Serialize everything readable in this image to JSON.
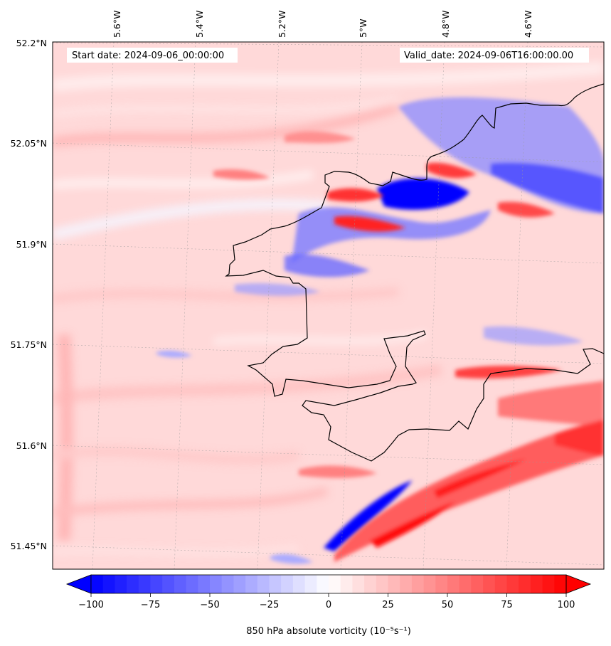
{
  "map": {
    "start_date_text": "Start date: 2024-09-06_00:00:00",
    "valid_date_text": "Valid_date: 2024-09-06T16:00:00.00",
    "lon_labels": [
      "5.6°W",
      "5.4°W",
      "5.2°W",
      "5°W",
      "4.8°W",
      "4.6°W"
    ],
    "lat_labels": [
      "52.2°N",
      "52.05°N",
      "51.9°N",
      "51.75°N",
      "51.6°N",
      "51.45°N"
    ],
    "field": "850 hPa absolute vorticity",
    "colormap": "bwr",
    "coastline_color": "#000000",
    "gridlines": "dotted",
    "features": [
      {
        "name": "strong-negative-core",
        "sign": "negative"
      },
      {
        "name": "negative-band-northeast",
        "sign": "negative"
      },
      {
        "name": "negative-streak-southwest",
        "sign": "negative"
      },
      {
        "name": "positive-band-south",
        "sign": "positive"
      },
      {
        "name": "positive-band-southeast",
        "sign": "positive"
      }
    ]
  },
  "colorbar": {
    "label": "850 hPa absolute vorticity (10⁻⁵s⁻¹)",
    "tick_labels": [
      "−100",
      "−75",
      "−50",
      "−25",
      "0",
      "25",
      "50",
      "75",
      "100"
    ],
    "min": -100,
    "max": 100,
    "extend": "both",
    "negative_color": "#0000ff",
    "zero_color": "#ffffff",
    "positive_color": "#ff0000"
  }
}
